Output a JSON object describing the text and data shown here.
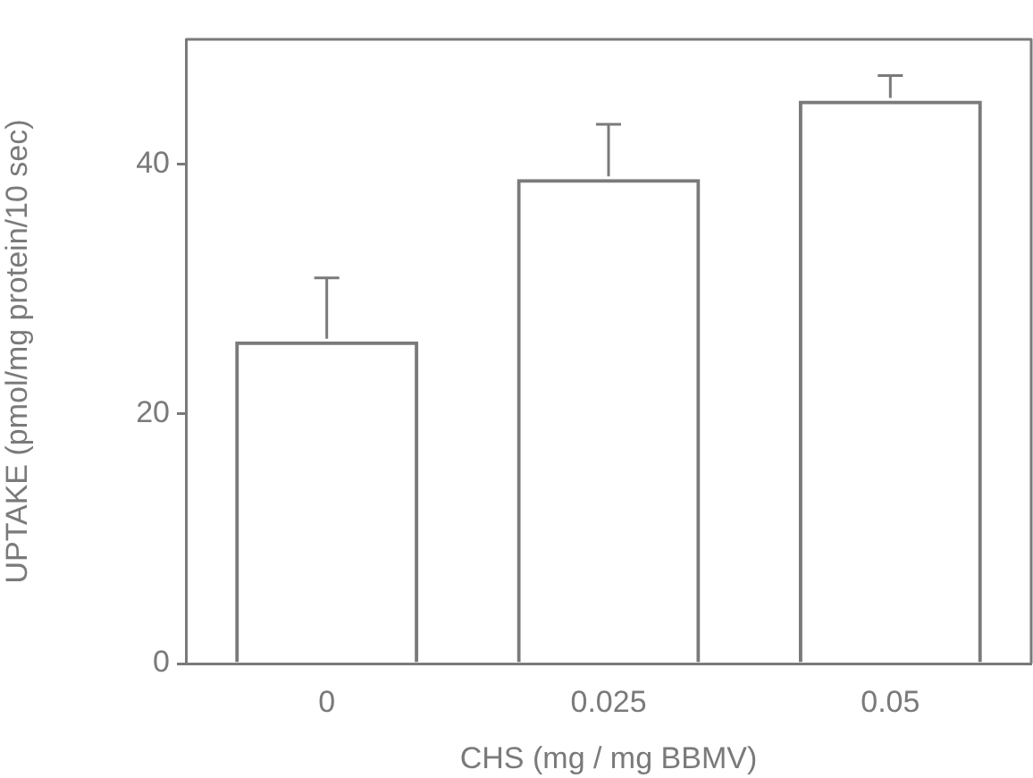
{
  "chart_data": {
    "type": "bar",
    "xlabel": "CHS (mg / mg BBMV)",
    "ylabel": "UPTAKE (pmol/mg protein/10 sec)",
    "categories": [
      "0",
      "0.025",
      "0.05"
    ],
    "values": [
      25.8,
      38.8,
      45.1
    ],
    "errors": [
      [
        25.8,
        30.9
      ],
      [
        38.8,
        43.2
      ],
      [
        45.1,
        47.1
      ]
    ],
    "color": "#7a7a7a",
    "ylim": [
      0,
      50
    ],
    "yticks": [
      0,
      20,
      40
    ],
    "grid": false,
    "legend": false
  }
}
